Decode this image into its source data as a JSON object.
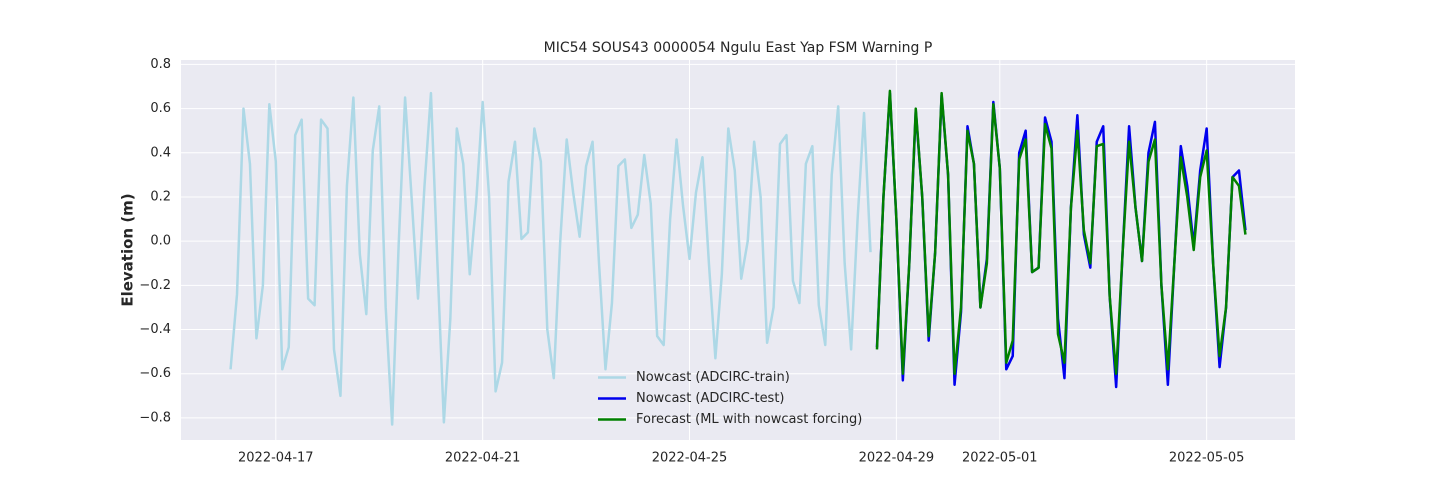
{
  "chart_data": {
    "type": "line",
    "title": "MIC54 SOUS43 0000054 Ngulu East Yap FSM Warning P",
    "ylabel": "Elevation (m)",
    "xlim": [
      "2022-04-15 04:00",
      "2022-05-06 17:00"
    ],
    "xticks": [
      "2022-04-17",
      "2022-04-21",
      "2022-04-25",
      "2022-04-29",
      "2022-05-01",
      "2022-05-05"
    ],
    "ylim": [
      -0.9,
      0.82
    ],
    "yticks": [
      {
        "value": -0.8,
        "label": "−0.8"
      },
      {
        "value": -0.6,
        "label": "−0.6"
      },
      {
        "value": -0.4,
        "label": "−0.4"
      },
      {
        "value": -0.2,
        "label": "−0.2"
      },
      {
        "value": 0,
        "label": "0.0"
      },
      0.2,
      0.4,
      0.6,
      0.8
    ],
    "grid": true,
    "legend": "lower center",
    "series": [
      {
        "name": "Nowcast (ADCIRC-train)",
        "color": "#add8e6",
        "x": [
          "2022-04-16 03:00",
          "2022-04-16 06:00",
          "2022-04-16 09:00",
          "2022-04-16 12:00",
          "2022-04-16 15:00",
          "2022-04-16 18:00",
          "2022-04-16 21:00",
          "2022-04-17 00:00",
          "2022-04-17 03:00",
          "2022-04-17 06:00",
          "2022-04-17 09:00",
          "2022-04-17 12:00",
          "2022-04-17 15:00",
          "2022-04-17 18:00",
          "2022-04-17 21:00",
          "2022-04-18 00:00",
          "2022-04-18 03:00",
          "2022-04-18 06:00",
          "2022-04-18 09:00",
          "2022-04-18 12:00",
          "2022-04-18 15:00",
          "2022-04-18 18:00",
          "2022-04-18 21:00",
          "2022-04-19 00:00",
          "2022-04-19 03:00",
          "2022-04-19 06:00",
          "2022-04-19 09:00",
          "2022-04-19 12:00",
          "2022-04-19 15:00",
          "2022-04-19 18:00",
          "2022-04-19 21:00",
          "2022-04-20 00:00",
          "2022-04-20 03:00",
          "2022-04-20 06:00",
          "2022-04-20 09:00",
          "2022-04-20 12:00",
          "2022-04-20 15:00",
          "2022-04-20 18:00",
          "2022-04-20 21:00",
          "2022-04-21 00:00",
          "2022-04-21 03:00",
          "2022-04-21 06:00",
          "2022-04-21 09:00",
          "2022-04-21 12:00",
          "2022-04-21 15:00",
          "2022-04-21 18:00",
          "2022-04-21 21:00",
          "2022-04-22 00:00",
          "2022-04-22 03:00",
          "2022-04-22 06:00",
          "2022-04-22 09:00",
          "2022-04-22 12:00",
          "2022-04-22 15:00",
          "2022-04-22 18:00",
          "2022-04-22 21:00",
          "2022-04-23 00:00",
          "2022-04-23 03:00",
          "2022-04-23 06:00",
          "2022-04-23 09:00",
          "2022-04-23 12:00",
          "2022-04-23 15:00",
          "2022-04-23 18:00",
          "2022-04-23 21:00",
          "2022-04-24 00:00",
          "2022-04-24 03:00",
          "2022-04-24 06:00",
          "2022-04-24 09:00",
          "2022-04-24 12:00",
          "2022-04-24 15:00",
          "2022-04-24 18:00",
          "2022-04-24 21:00",
          "2022-04-25 00:00",
          "2022-04-25 03:00",
          "2022-04-25 06:00",
          "2022-04-25 09:00",
          "2022-04-25 12:00",
          "2022-04-25 15:00",
          "2022-04-25 18:00",
          "2022-04-25 21:00",
          "2022-04-26 00:00",
          "2022-04-26 03:00",
          "2022-04-26 06:00",
          "2022-04-26 09:00",
          "2022-04-26 12:00",
          "2022-04-26 15:00",
          "2022-04-26 18:00",
          "2022-04-26 21:00",
          "2022-04-27 00:00",
          "2022-04-27 03:00",
          "2022-04-27 06:00",
          "2022-04-27 09:00",
          "2022-04-27 12:00",
          "2022-04-27 15:00",
          "2022-04-27 18:00",
          "2022-04-27 21:00",
          "2022-04-28 00:00",
          "2022-04-28 03:00",
          "2022-04-28 06:00",
          "2022-04-28 09:00",
          "2022-04-28 12:00"
        ],
        "values": [
          -0.58,
          -0.24,
          0.6,
          0.35,
          -0.44,
          -0.2,
          0.62,
          0.36,
          -0.58,
          -0.48,
          0.48,
          0.55,
          -0.26,
          -0.29,
          0.55,
          0.51,
          -0.49,
          -0.7,
          0.25,
          0.65,
          -0.06,
          -0.33,
          0.41,
          0.61,
          -0.3,
          -0.83,
          -0.02,
          0.65,
          0.2,
          -0.26,
          0.25,
          0.67,
          -0.1,
          -0.82,
          -0.35,
          0.51,
          0.35,
          -0.15,
          0.18,
          0.63,
          0.2,
          -0.68,
          -0.55,
          0.27,
          0.45,
          0.01,
          0.04,
          0.51,
          0.36,
          -0.4,
          -0.62,
          0.0,
          0.46,
          0.22,
          0.02,
          0.34,
          0.45,
          -0.1,
          -0.58,
          -0.28,
          0.34,
          0.37,
          0.06,
          0.12,
          0.39,
          0.17,
          -0.43,
          -0.47,
          0.1,
          0.46,
          0.16,
          -0.08,
          0.22,
          0.38,
          -0.1,
          -0.53,
          -0.15,
          0.51,
          0.32,
          -0.17,
          0.0,
          0.45,
          0.2,
          -0.46,
          -0.3,
          0.44,
          0.48,
          -0.18,
          -0.28,
          0.35,
          0.43,
          -0.29,
          -0.47,
          0.3,
          0.61,
          -0.1,
          -0.49,
          0.1,
          0.58,
          -0.05
        ]
      },
      {
        "name": "Nowcast (ADCIRC-test)",
        "color": "#0000ee",
        "x": [
          "2022-04-28 15:00",
          "2022-04-28 18:00",
          "2022-04-28 21:00",
          "2022-04-29 00:00",
          "2022-04-29 03:00",
          "2022-04-29 06:00",
          "2022-04-29 09:00",
          "2022-04-29 12:00",
          "2022-04-29 15:00",
          "2022-04-29 18:00",
          "2022-04-29 21:00",
          "2022-04-30 00:00",
          "2022-04-30 03:00",
          "2022-04-30 06:00",
          "2022-04-30 09:00",
          "2022-04-30 12:00",
          "2022-04-30 15:00",
          "2022-04-30 18:00",
          "2022-04-30 21:00",
          "2022-05-01 00:00",
          "2022-05-01 03:00",
          "2022-05-01 06:00",
          "2022-05-01 09:00",
          "2022-05-01 12:00",
          "2022-05-01 15:00",
          "2022-05-01 18:00",
          "2022-05-01 21:00",
          "2022-05-02 00:00",
          "2022-05-02 03:00",
          "2022-05-02 06:00",
          "2022-05-02 09:00",
          "2022-05-02 12:00",
          "2022-05-02 15:00",
          "2022-05-02 18:00",
          "2022-05-02 21:00",
          "2022-05-03 00:00",
          "2022-05-03 03:00",
          "2022-05-03 06:00",
          "2022-05-03 09:00",
          "2022-05-03 12:00",
          "2022-05-03 15:00",
          "2022-05-03 18:00",
          "2022-05-03 21:00",
          "2022-05-04 00:00",
          "2022-05-04 03:00",
          "2022-05-04 06:00",
          "2022-05-04 09:00",
          "2022-05-04 12:00",
          "2022-05-04 15:00",
          "2022-05-04 18:00",
          "2022-05-04 21:00",
          "2022-05-05 00:00",
          "2022-05-05 03:00",
          "2022-05-05 06:00",
          "2022-05-05 09:00",
          "2022-05-05 12:00",
          "2022-05-05 15:00",
          "2022-05-05 18:00"
        ],
        "values": [
          -0.48,
          0.2,
          0.67,
          0.1,
          -0.63,
          -0.1,
          0.59,
          0.2,
          -0.45,
          -0.05,
          0.66,
          0.3,
          -0.65,
          -0.32,
          0.52,
          0.35,
          -0.3,
          -0.08,
          0.63,
          0.33,
          -0.58,
          -0.52,
          0.4,
          0.5,
          -0.14,
          -0.12,
          0.56,
          0.45,
          -0.35,
          -0.62,
          0.15,
          0.57,
          0.03,
          -0.12,
          0.45,
          0.52,
          -0.25,
          -0.66,
          -0.05,
          0.52,
          0.15,
          -0.09,
          0.4,
          0.54,
          -0.2,
          -0.65,
          -0.1,
          0.43,
          0.25,
          -0.02,
          0.32,
          0.51,
          -0.1,
          -0.57,
          -0.3,
          0.29,
          0.32,
          0.05
        ]
      },
      {
        "name": "Forecast (ML with nowcast forcing)",
        "color": "#008000",
        "x": [
          "2022-04-28 15:00",
          "2022-04-28 18:00",
          "2022-04-28 21:00",
          "2022-04-29 00:00",
          "2022-04-29 03:00",
          "2022-04-29 06:00",
          "2022-04-29 09:00",
          "2022-04-29 12:00",
          "2022-04-29 15:00",
          "2022-04-29 18:00",
          "2022-04-29 21:00",
          "2022-04-30 00:00",
          "2022-04-30 03:00",
          "2022-04-30 06:00",
          "2022-04-30 09:00",
          "2022-04-30 12:00",
          "2022-04-30 15:00",
          "2022-04-30 18:00",
          "2022-04-30 21:00",
          "2022-05-01 00:00",
          "2022-05-01 03:00",
          "2022-05-01 06:00",
          "2022-05-01 09:00",
          "2022-05-01 12:00",
          "2022-05-01 15:00",
          "2022-05-01 18:00",
          "2022-05-01 21:00",
          "2022-05-02 00:00",
          "2022-05-02 03:00",
          "2022-05-02 06:00",
          "2022-05-02 09:00",
          "2022-05-02 12:00",
          "2022-05-02 15:00",
          "2022-05-02 18:00",
          "2022-05-02 21:00",
          "2022-05-03 00:00",
          "2022-05-03 03:00",
          "2022-05-03 06:00",
          "2022-05-03 09:00",
          "2022-05-03 12:00",
          "2022-05-03 15:00",
          "2022-05-03 18:00",
          "2022-05-03 21:00",
          "2022-05-04 00:00",
          "2022-05-04 03:00",
          "2022-05-04 06:00",
          "2022-05-04 09:00",
          "2022-05-04 12:00",
          "2022-05-04 15:00",
          "2022-05-04 18:00",
          "2022-05-04 21:00",
          "2022-05-05 00:00",
          "2022-05-05 03:00",
          "2022-05-05 06:00",
          "2022-05-05 09:00",
          "2022-05-05 12:00",
          "2022-05-05 15:00",
          "2022-05-05 18:00"
        ],
        "values": [
          -0.49,
          0.2,
          0.68,
          0.1,
          -0.6,
          -0.1,
          0.6,
          0.2,
          -0.43,
          -0.05,
          0.67,
          0.3,
          -0.6,
          -0.3,
          0.5,
          0.35,
          -0.3,
          -0.1,
          0.62,
          0.33,
          -0.55,
          -0.45,
          0.37,
          0.46,
          -0.14,
          -0.12,
          0.53,
          0.42,
          -0.42,
          -0.55,
          0.15,
          0.5,
          0.05,
          -0.1,
          0.43,
          0.44,
          -0.25,
          -0.6,
          -0.05,
          0.45,
          0.15,
          -0.09,
          0.36,
          0.46,
          -0.2,
          -0.58,
          -0.1,
          0.38,
          0.2,
          -0.04,
          0.29,
          0.41,
          -0.1,
          -0.52,
          -0.3,
          0.29,
          0.25,
          0.03
        ]
      }
    ]
  }
}
